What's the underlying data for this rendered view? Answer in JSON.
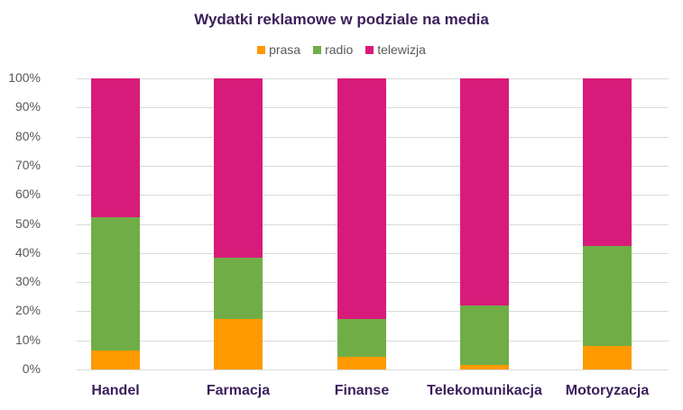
{
  "chart_data": {
    "type": "bar",
    "stacked": true,
    "percent": true,
    "title": "Wydatki reklamowe w podziale na media",
    "xlabel": "",
    "ylabel": "",
    "ylim": [
      0,
      100
    ],
    "yticks": [
      "0%",
      "10%",
      "20%",
      "30%",
      "40%",
      "50%",
      "60%",
      "70%",
      "80%",
      "90%",
      "100%"
    ],
    "grid": true,
    "legend_position": "top",
    "categories": [
      "Handel",
      "Farmacja",
      "Finanse",
      "Telekomunikacja",
      "Motoryzacja"
    ],
    "series": [
      {
        "name": "prasa",
        "color": "#ff9900",
        "values": [
          6.5,
          17.3,
          4.3,
          1.5,
          7.9
        ]
      },
      {
        "name": "radio",
        "color": "#70ad47",
        "values": [
          45.8,
          21.1,
          13.0,
          20.5,
          34.6
        ]
      },
      {
        "name": "telewizja",
        "color": "#d81b7a",
        "values": [
          47.7,
          61.6,
          82.7,
          78.0,
          57.5
        ]
      }
    ]
  }
}
